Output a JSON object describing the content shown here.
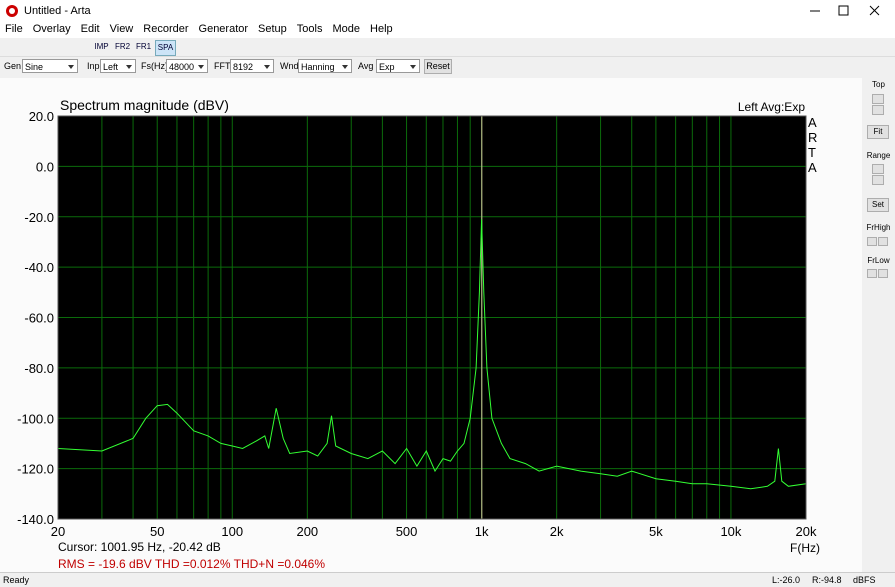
{
  "window": {
    "title": "Untitled - Arta"
  },
  "menu": [
    "File",
    "Overlay",
    "Edit",
    "View",
    "Recorder",
    "Generator",
    "Setup",
    "Tools",
    "Mode",
    "Help"
  ],
  "toolbar": {
    "buttons": [
      "IMP",
      "FR2",
      "FR1",
      "SPA"
    ],
    "active": "SPA"
  },
  "controls": [
    {
      "label": "Gen",
      "value": "Sine"
    },
    {
      "label": "Inp",
      "value": "Left"
    },
    {
      "label": "Fs(Hz)",
      "value": "48000"
    },
    {
      "label": "FFT",
      "value": "8192"
    },
    {
      "label": "Wnd",
      "value": "Hanning"
    },
    {
      "label": "Avg",
      "value": "Exp"
    }
  ],
  "reset": "Reset",
  "chart_data": {
    "type": "line",
    "title": "Spectrum magnitude (dBV)",
    "subtitle": "Left  Avg:Exp",
    "brand": [
      "A",
      "R",
      "T",
      "A"
    ],
    "x_label": "F(Hz)",
    "cursor_text": "Cursor: 1001.95 Hz, -20.42 dB",
    "rms_text": "RMS =  -19.6 dBV  THD =0.012%  THD+N =0.046%",
    "xlog": true,
    "xlim": [
      20,
      20000
    ],
    "ylim": [
      -140,
      20
    ],
    "xticks": [
      20,
      50,
      100,
      200,
      500,
      {
        "value": 1000,
        "label": "1k"
      },
      {
        "value": 2000,
        "label": "2k"
      },
      {
        "value": 5000,
        "label": "5k"
      },
      {
        "value": 10000,
        "label": "10k"
      },
      {
        "value": 20000,
        "label": "20k"
      }
    ],
    "xminorticks": [
      30,
      40,
      60,
      70,
      80,
      90,
      300,
      400,
      600,
      700,
      800,
      900,
      3000,
      4000,
      6000,
      7000,
      8000,
      9000
    ],
    "yticks": [
      {
        "value": 20,
        "label": "20.0"
      },
      {
        "value": 0,
        "label": "0.0"
      },
      {
        "value": -20,
        "label": "-20.0"
      },
      {
        "value": -40,
        "label": "-40.0"
      },
      {
        "value": -60,
        "label": "-60.0"
      },
      {
        "value": -80,
        "label": "-80.0"
      },
      {
        "value": -100,
        "label": "-100.0"
      },
      {
        "value": -120,
        "label": "-120.0"
      },
      {
        "value": -140,
        "label": "-140.0"
      }
    ],
    "grid": true,
    "grid_color": "#0b6b0b",
    "cursor_x": 1001.95,
    "cursor_color": "#d8c8a0",
    "series": [
      {
        "name": "Left",
        "color": "#33ff33",
        "x": [
          20,
          30,
          40,
          45,
          50,
          55,
          60,
          70,
          80,
          90,
          100,
          110,
          125,
          135,
          140,
          150,
          160,
          170,
          200,
          220,
          240,
          250,
          260,
          300,
          350,
          400,
          450,
          500,
          550,
          600,
          650,
          700,
          750,
          800,
          850,
          900,
          950,
          980,
          1000,
          1020,
          1050,
          1100,
          1200,
          1300,
          1500,
          1700,
          2000,
          2500,
          3000,
          3500,
          4000,
          5000,
          6000,
          7000,
          8000,
          10000,
          12000,
          14000,
          15000,
          15500,
          16000,
          17000,
          20000
        ],
        "values": [
          -112,
          -113,
          -108,
          -100,
          -95,
          -94.5,
          -98,
          -105,
          -107,
          -110,
          -111,
          -112,
          -109,
          -107,
          -112,
          -96,
          -108,
          -114,
          -113,
          -115,
          -110,
          -99,
          -111,
          -114,
          -116,
          -113,
          -118,
          -112,
          -119,
          -113,
          -121,
          -116,
          -117,
          -113,
          -110,
          -100,
          -80,
          -50,
          -21,
          -50,
          -80,
          -100,
          -110,
          -116,
          -118,
          -121,
          -119,
          -121,
          -122,
          -123,
          -121,
          -124,
          -125,
          -126,
          -126,
          -127,
          -128,
          -127,
          -125,
          -112,
          -125,
          -127,
          -126
        ]
      }
    ]
  },
  "side_panel": {
    "top": "Top",
    "fit": "Fit",
    "range": "Range",
    "set": "Set",
    "frhigh": "FrHigh",
    "frlow": "FrLow"
  },
  "status": {
    "ready": "Ready",
    "left": "L:-26.0",
    "right": "R:-94.8",
    "unit": "dBFS"
  }
}
